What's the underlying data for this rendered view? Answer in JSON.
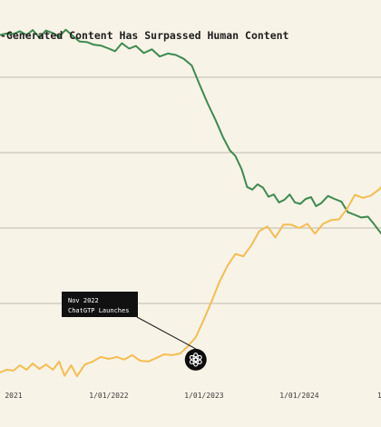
{
  "chart_data": {
    "type": "line",
    "title": "-Generated Content Has Surpassed Human Content",
    "xlabel": "",
    "ylabel": "",
    "x_range": [
      "2020-11-10",
      "2025-03-15"
    ],
    "y_range": [
      0,
      100
    ],
    "grid": "horizontal",
    "legend": "none",
    "x_ticks": [
      {
        "date": "2021-01-01",
        "label": "2021"
      },
      {
        "date": "2022-01-01",
        "label": "1/01/2022"
      },
      {
        "date": "2023-01-01",
        "label": "1/01/2023"
      },
      {
        "date": "2024-01-01",
        "label": "1/01/2024"
      },
      {
        "date": "2025-01-01",
        "label": "1/01/202"
      }
    ],
    "y_gridlines": [
      20,
      40,
      60,
      80
    ],
    "series": [
      {
        "color": "#3d8a4f",
        "points": [
          [
            "2020-11-10",
            91.2
          ],
          [
            "2020-12-05",
            91.6
          ],
          [
            "2021-01-01",
            91.5
          ],
          [
            "2021-01-25",
            92.2
          ],
          [
            "2021-02-20",
            91.2
          ],
          [
            "2021-03-15",
            92.5
          ],
          [
            "2021-04-10",
            90.5
          ],
          [
            "2021-05-05",
            92.4
          ],
          [
            "2021-06-01",
            91.7
          ],
          [
            "2021-06-25",
            90.8
          ],
          [
            "2021-07-20",
            92.6
          ],
          [
            "2021-08-15",
            91.0
          ],
          [
            "2021-09-10",
            89.5
          ],
          [
            "2021-10-10",
            89.3
          ],
          [
            "2021-11-05",
            88.6
          ],
          [
            "2021-12-01",
            88.4
          ],
          [
            "2022-01-01",
            87.6
          ],
          [
            "2022-01-25",
            86.9
          ],
          [
            "2022-02-20",
            89.0
          ],
          [
            "2022-03-20",
            87.6
          ],
          [
            "2022-04-15",
            88.3
          ],
          [
            "2022-05-15",
            86.4
          ],
          [
            "2022-06-15",
            87.4
          ],
          [
            "2022-07-15",
            85.5
          ],
          [
            "2022-08-15",
            86.3
          ],
          [
            "2022-09-15",
            85.9
          ],
          [
            "2022-10-15",
            84.9
          ],
          [
            "2022-11-15",
            83.1
          ],
          [
            "2022-12-15",
            78.0
          ],
          [
            "2023-01-15",
            73.0
          ],
          [
            "2023-02-15",
            68.5
          ],
          [
            "2023-03-15",
            64.0
          ],
          [
            "2023-04-10",
            60.6
          ],
          [
            "2023-05-01",
            59.1
          ],
          [
            "2023-05-25",
            55.6
          ],
          [
            "2023-06-15",
            50.9
          ],
          [
            "2023-07-05",
            50.2
          ],
          [
            "2023-07-25",
            51.6
          ],
          [
            "2023-08-15",
            50.7
          ],
          [
            "2023-09-05",
            48.3
          ],
          [
            "2023-09-25",
            48.9
          ],
          [
            "2023-10-15",
            46.8
          ],
          [
            "2023-11-05",
            47.5
          ],
          [
            "2023-11-25",
            48.9
          ],
          [
            "2023-12-15",
            46.8
          ],
          [
            "2024-01-05",
            46.4
          ],
          [
            "2024-01-25",
            47.7
          ],
          [
            "2024-02-15",
            48.2
          ],
          [
            "2024-03-05",
            45.8
          ],
          [
            "2024-03-25",
            46.6
          ],
          [
            "2024-04-20",
            48.5
          ],
          [
            "2024-05-15",
            47.7
          ],
          [
            "2024-06-10",
            47.0
          ],
          [
            "2024-07-05",
            44.2
          ],
          [
            "2024-08-01",
            43.5
          ],
          [
            "2024-08-25",
            42.8
          ],
          [
            "2024-09-20",
            43.0
          ],
          [
            "2024-10-15",
            40.9
          ],
          [
            "2024-11-10",
            38.5
          ],
          [
            "2024-12-05",
            38.9
          ],
          [
            "2025-01-01",
            40.9
          ],
          [
            "2025-01-25",
            41.6
          ],
          [
            "2025-02-20",
            41.6
          ],
          [
            "2025-03-15",
            41.6
          ]
        ]
      },
      {
        "color": "#f4bd52",
        "points": [
          [
            "2020-11-10",
            1.7
          ],
          [
            "2020-12-05",
            2.4
          ],
          [
            "2021-01-01",
            2.2
          ],
          [
            "2021-01-25",
            3.6
          ],
          [
            "2021-02-20",
            2.4
          ],
          [
            "2021-03-15",
            4.1
          ],
          [
            "2021-04-10",
            2.6
          ],
          [
            "2021-05-05",
            3.8
          ],
          [
            "2021-06-01",
            2.4
          ],
          [
            "2021-06-25",
            4.6
          ],
          [
            "2021-07-15",
            0.8
          ],
          [
            "2021-08-10",
            3.6
          ],
          [
            "2021-09-01",
            0.7
          ],
          [
            "2021-10-01",
            3.8
          ],
          [
            "2021-11-01",
            4.6
          ],
          [
            "2021-12-01",
            5.8
          ],
          [
            "2022-01-01",
            5.3
          ],
          [
            "2022-02-01",
            5.8
          ],
          [
            "2022-03-01",
            5.1
          ],
          [
            "2022-04-01",
            6.3
          ],
          [
            "2022-05-01",
            4.8
          ],
          [
            "2022-06-01",
            4.6
          ],
          [
            "2022-07-01",
            5.5
          ],
          [
            "2022-08-01",
            6.5
          ],
          [
            "2022-09-01",
            6.3
          ],
          [
            "2022-10-01",
            6.7
          ],
          [
            "2022-11-01",
            8.7
          ],
          [
            "2022-12-01",
            11.1
          ],
          [
            "2023-01-01",
            15.9
          ],
          [
            "2023-02-01",
            20.9
          ],
          [
            "2023-03-01",
            25.7
          ],
          [
            "2023-04-01",
            30.0
          ],
          [
            "2023-05-01",
            33.1
          ],
          [
            "2023-06-01",
            32.5
          ],
          [
            "2023-07-01",
            35.4
          ],
          [
            "2023-08-01",
            39.2
          ],
          [
            "2023-09-01",
            40.4
          ],
          [
            "2023-10-01",
            37.5
          ],
          [
            "2023-11-01",
            40.9
          ],
          [
            "2023-12-01",
            40.9
          ],
          [
            "2024-01-01",
            40.0
          ],
          [
            "2024-02-01",
            41.1
          ],
          [
            "2024-03-01",
            38.5
          ],
          [
            "2024-04-01",
            41.1
          ],
          [
            "2024-05-01",
            42.1
          ],
          [
            "2024-06-01",
            42.3
          ],
          [
            "2024-07-01",
            45.0
          ],
          [
            "2024-08-01",
            48.8
          ],
          [
            "2024-09-01",
            48.0
          ],
          [
            "2024-10-01",
            48.6
          ],
          [
            "2024-11-01",
            50.2
          ],
          [
            "2024-12-01",
            52.4
          ],
          [
            "2025-01-01",
            54.4
          ],
          [
            "2025-02-01",
            54.4
          ],
          [
            "2025-03-15",
            53.9
          ]
        ]
      }
    ],
    "annotation": {
      "date": "2022-11-30",
      "value": 4.6,
      "line1": "Nov 2022",
      "line2": "ChatGTP Launches",
      "icon": "openai-logo-icon"
    }
  }
}
